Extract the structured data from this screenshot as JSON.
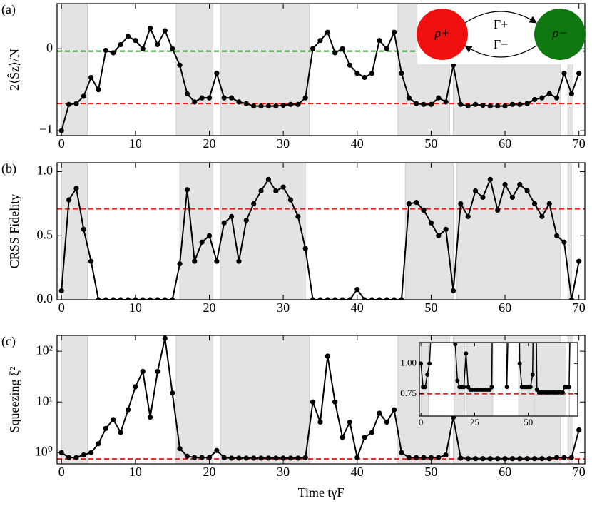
{
  "chart_data": [
    {
      "type": "line",
      "panel_label": "(a)",
      "ylabel": "2⟨Ŝz⟩/N",
      "x": [
        0,
        1,
        2,
        3,
        4,
        5,
        6,
        7,
        8,
        9,
        10,
        11,
        12,
        13,
        14,
        15,
        16,
        17,
        18,
        19,
        20,
        21,
        22,
        23,
        24,
        25,
        26,
        27,
        28,
        29,
        30,
        31,
        32,
        33,
        34,
        35,
        36,
        37,
        38,
        39,
        40,
        41,
        42,
        43,
        44,
        45,
        46,
        47,
        48,
        49,
        50,
        51,
        52,
        53,
        54,
        55,
        56,
        57,
        58,
        59,
        60,
        61,
        62,
        63,
        64,
        65,
        66,
        67,
        68,
        69,
        70
      ],
      "series": [
        {
          "color": "#000000",
          "values": [
            -1.0,
            -0.68,
            -0.67,
            -0.58,
            -0.35,
            -0.5,
            -0.02,
            -0.05,
            0.05,
            0.15,
            0.1,
            0.0,
            0.25,
            0.05,
            0.22,
            0.0,
            -0.2,
            -0.55,
            -0.65,
            -0.6,
            -0.6,
            -0.3,
            -0.6,
            -0.6,
            -0.65,
            -0.67,
            -0.7,
            -0.7,
            -0.7,
            -0.7,
            -0.69,
            -0.68,
            -0.68,
            -0.6,
            0.0,
            0.1,
            0.2,
            -0.05,
            0.0,
            -0.2,
            -0.3,
            -0.35,
            -0.3,
            0.1,
            0.0,
            0.2,
            -0.3,
            -0.6,
            -0.67,
            -0.68,
            -0.68,
            -0.6,
            -0.65,
            -0.2,
            -0.68,
            -0.7,
            -0.68,
            -0.69,
            -0.7,
            -0.7,
            -0.7,
            -0.68,
            -0.68,
            -0.67,
            -0.62,
            -0.6,
            -0.55,
            -0.6,
            -0.3,
            -0.55,
            -0.3
          ]
        }
      ],
      "xlim": [
        -0.6,
        70.8
      ],
      "ylim": [
        -1.06,
        0.55
      ],
      "xticks": [
        0,
        10,
        20,
        30,
        40,
        50,
        60,
        70
      ],
      "yticks": [
        {
          "value": -1,
          "label": "−1"
        },
        0
      ],
      "hlines": [
        {
          "value": -0.67,
          "color": "#e8201c"
        },
        {
          "value": -0.03,
          "color": "#2a9a2a"
        }
      ],
      "shaded": [
        [
          0,
          3.5
        ],
        [
          15.5,
          20.5
        ],
        [
          21.5,
          33.5
        ],
        [
          45.5,
          52.5
        ],
        [
          53,
          67.5
        ],
        [
          68.5,
          69.2
        ]
      ],
      "diagram": {
        "nodes": [
          "ρ+",
          "ρ−"
        ],
        "edges": [
          "Γ+",
          "Γ−"
        ],
        "colors": [
          "#f01010",
          "#107810"
        ]
      }
    },
    {
      "type": "line",
      "panel_label": "(b)",
      "ylabel": "CRSS Fidelity",
      "x": [
        0,
        1,
        2,
        3,
        4,
        5,
        6,
        7,
        8,
        9,
        10,
        11,
        12,
        13,
        14,
        15,
        16,
        17,
        18,
        19,
        20,
        21,
        22,
        23,
        24,
        25,
        26,
        27,
        28,
        29,
        30,
        31,
        32,
        33,
        34,
        35,
        36,
        37,
        38,
        39,
        40,
        41,
        42,
        43,
        44,
        45,
        46,
        47,
        48,
        49,
        50,
        51,
        52,
        53,
        54,
        55,
        56,
        57,
        58,
        59,
        60,
        61,
        62,
        63,
        64,
        65,
        66,
        67,
        68,
        69,
        70
      ],
      "series": [
        {
          "color": "#000000",
          "values": [
            0.07,
            0.78,
            0.87,
            0.55,
            0.3,
            0,
            0,
            0,
            0,
            0,
            0,
            0,
            0,
            0,
            0,
            0,
            0.28,
            0.86,
            0.3,
            0.45,
            0.5,
            0.3,
            0.6,
            0.65,
            0.3,
            0.62,
            0.75,
            0.85,
            0.94,
            0.85,
            0.88,
            0.78,
            0.65,
            0.4,
            0,
            0,
            0,
            0,
            0,
            0,
            0.08,
            0,
            0,
            0,
            0,
            0,
            0,
            0.75,
            0.76,
            0.7,
            0.6,
            0.5,
            0.55,
            0.07,
            0.75,
            0.65,
            0.85,
            0.8,
            0.94,
            0.7,
            0.9,
            0.8,
            0.9,
            0.85,
            0.75,
            0.65,
            0.75,
            0.5,
            0.45,
            0,
            0.3
          ]
        }
      ],
      "xlim": [
        -0.6,
        70.8
      ],
      "ylim": [
        0,
        1.07
      ],
      "xticks": [
        0,
        10,
        20,
        30,
        40,
        50,
        60,
        70
      ],
      "yticks": [
        {
          "value": 0,
          "label": "0.0"
        },
        {
          "value": 0.5,
          "label": "0.5"
        },
        {
          "value": 1,
          "label": "1.0"
        }
      ],
      "hlines": [
        {
          "value": 0.71,
          "color": "#e8201c"
        }
      ],
      "shaded": [
        [
          0,
          3.5
        ],
        [
          16,
          20.5
        ],
        [
          21.5,
          33
        ],
        [
          46.5,
          53
        ],
        [
          53.5,
          67.5
        ],
        [
          68.5,
          69
        ]
      ]
    },
    {
      "type": "line",
      "panel_label": "(c)",
      "ylabel": "Squeezing ξ²",
      "xlabel": "Time tγF",
      "log_y": true,
      "x": [
        0,
        1,
        2,
        3,
        4,
        5,
        6,
        7,
        8,
        9,
        10,
        11,
        12,
        13,
        14,
        15,
        16,
        17,
        18,
        19,
        20,
        21,
        22,
        23,
        24,
        25,
        26,
        27,
        28,
        29,
        30,
        31,
        32,
        33,
        34,
        35,
        36,
        37,
        38,
        39,
        40,
        41,
        42,
        43,
        44,
        45,
        46,
        47,
        48,
        49,
        50,
        51,
        52,
        53,
        54,
        55,
        56,
        57,
        58,
        59,
        60,
        61,
        62,
        63,
        64,
        65,
        66,
        67,
        68,
        69,
        70
      ],
      "series": [
        {
          "color": "#000000",
          "values": [
            1.0,
            0.8,
            0.8,
            0.9,
            1.0,
            1.5,
            3,
            4.5,
            2.5,
            7,
            20,
            40,
            5,
            40,
            180,
            15,
            1.2,
            0.85,
            0.8,
            0.8,
            0.8,
            1.1,
            0.8,
            0.78,
            0.78,
            0.78,
            0.78,
            0.78,
            0.78,
            0.78,
            0.78,
            0.78,
            0.78,
            0.8,
            10,
            4,
            80,
            10,
            2,
            4,
            0.8,
            2,
            2.5,
            6,
            4,
            7,
            1.0,
            0.8,
            0.8,
            0.8,
            0.8,
            0.8,
            0.9,
            5,
            0.78,
            0.76,
            0.76,
            0.76,
            0.76,
            0.76,
            0.76,
            0.76,
            0.76,
            0.76,
            0.76,
            0.76,
            0.76,
            0.8,
            0.8,
            0.8,
            2.8
          ]
        }
      ],
      "xlim": [
        -0.6,
        70.8
      ],
      "ylim": [
        0.6,
        205
      ],
      "xticks": [
        0,
        10,
        20,
        30,
        40,
        50,
        60,
        70
      ],
      "yticks": [
        {
          "value": 1,
          "label": "10⁰"
        },
        {
          "value": 10,
          "label": "10¹"
        },
        {
          "value": 100,
          "label": "10²"
        }
      ],
      "hlines": [
        {
          "value": 0.75,
          "color": "#e8201c"
        }
      ],
      "shaded": [
        [
          0,
          3.5
        ],
        [
          15.5,
          20.5
        ],
        [
          21.5,
          33.5
        ],
        [
          45.5,
          52.5
        ],
        [
          53,
          67.5
        ],
        [
          68.5,
          69.2
        ]
      ],
      "inset": {
        "xlim": [
          -0.7,
          73
        ],
        "ylim": [
          0.607,
          1.22
        ],
        "xticks": [
          0,
          25,
          50
        ],
        "yticks": [
          {
            "value": 0.75,
            "label": "0.75"
          },
          {
            "value": 1,
            "label": "1.00"
          }
        ]
      }
    }
  ]
}
